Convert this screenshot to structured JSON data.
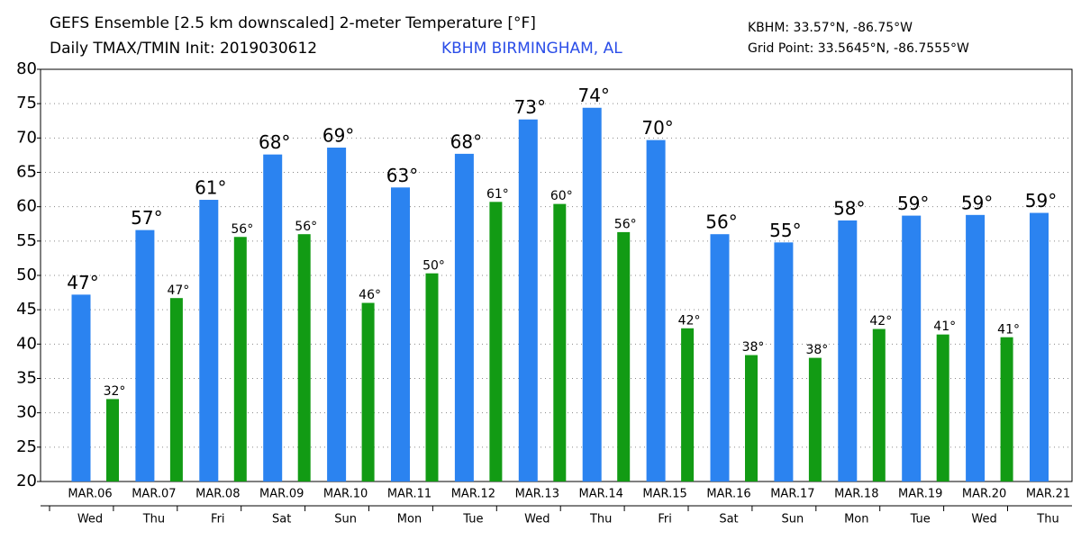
{
  "chart_data": {
    "type": "bar",
    "title": "GEFS Ensemble [2.5 km downscaled] 2-meter Temperature [°F]",
    "subtitle": "Daily TMAX/TMIN Init: 2019030612",
    "location": "KBHM BIRMINGHAM, AL",
    "station": "KBHM: 33.57°N, -86.75°W",
    "grid_point": "Grid Point: 33.5645°N, -86.7555°W",
    "categories": [
      "MAR.06",
      "MAR.07",
      "MAR.08",
      "MAR.09",
      "MAR.10",
      "MAR.11",
      "MAR.12",
      "MAR.13",
      "MAR.14",
      "MAR.15",
      "MAR.16",
      "MAR.17",
      "MAR.18",
      "MAR.19",
      "MAR.20",
      "MAR.21"
    ],
    "weekdays": [
      "Wed",
      "Thu",
      "Fri",
      "Sat",
      "Sun",
      "Mon",
      "Tue",
      "Wed",
      "Thu",
      "Fri",
      "Sat",
      "Sun",
      "Mon",
      "Tue",
      "Wed",
      "Thu"
    ],
    "series": [
      {
        "color": "#2b83f0",
        "values": [
          47.2,
          56.6,
          61,
          67.6,
          68.6,
          62.8,
          67.7,
          72.7,
          74.4,
          69.7,
          56,
          54.8,
          58,
          58.7,
          58.8,
          59.1
        ],
        "value_labels": [
          "47°",
          "57°",
          "61°",
          "68°",
          "69°",
          "63°",
          "68°",
          "73°",
          "74°",
          "70°",
          "56°",
          "55°",
          "58°",
          "59°",
          "59°",
          "59°"
        ]
      },
      {
        "color": "#129b14",
        "values": [
          32,
          46.7,
          55.6,
          56,
          46,
          50.3,
          60.7,
          60.4,
          56.3,
          42.3,
          38.4,
          38,
          42.2,
          41.4,
          41,
          null
        ],
        "value_labels": [
          "32°",
          "47°",
          "56°",
          "56°",
          "46°",
          "50°",
          "61°",
          "60°",
          "56°",
          "42°",
          "38°",
          "38°",
          "42°",
          "41°",
          "41°",
          null
        ]
      }
    ],
    "ylim": [
      20,
      80
    ],
    "yticks": [
      20,
      25,
      30,
      35,
      40,
      45,
      50,
      55,
      60,
      65,
      70,
      75,
      80
    ],
    "grid": true
  }
}
